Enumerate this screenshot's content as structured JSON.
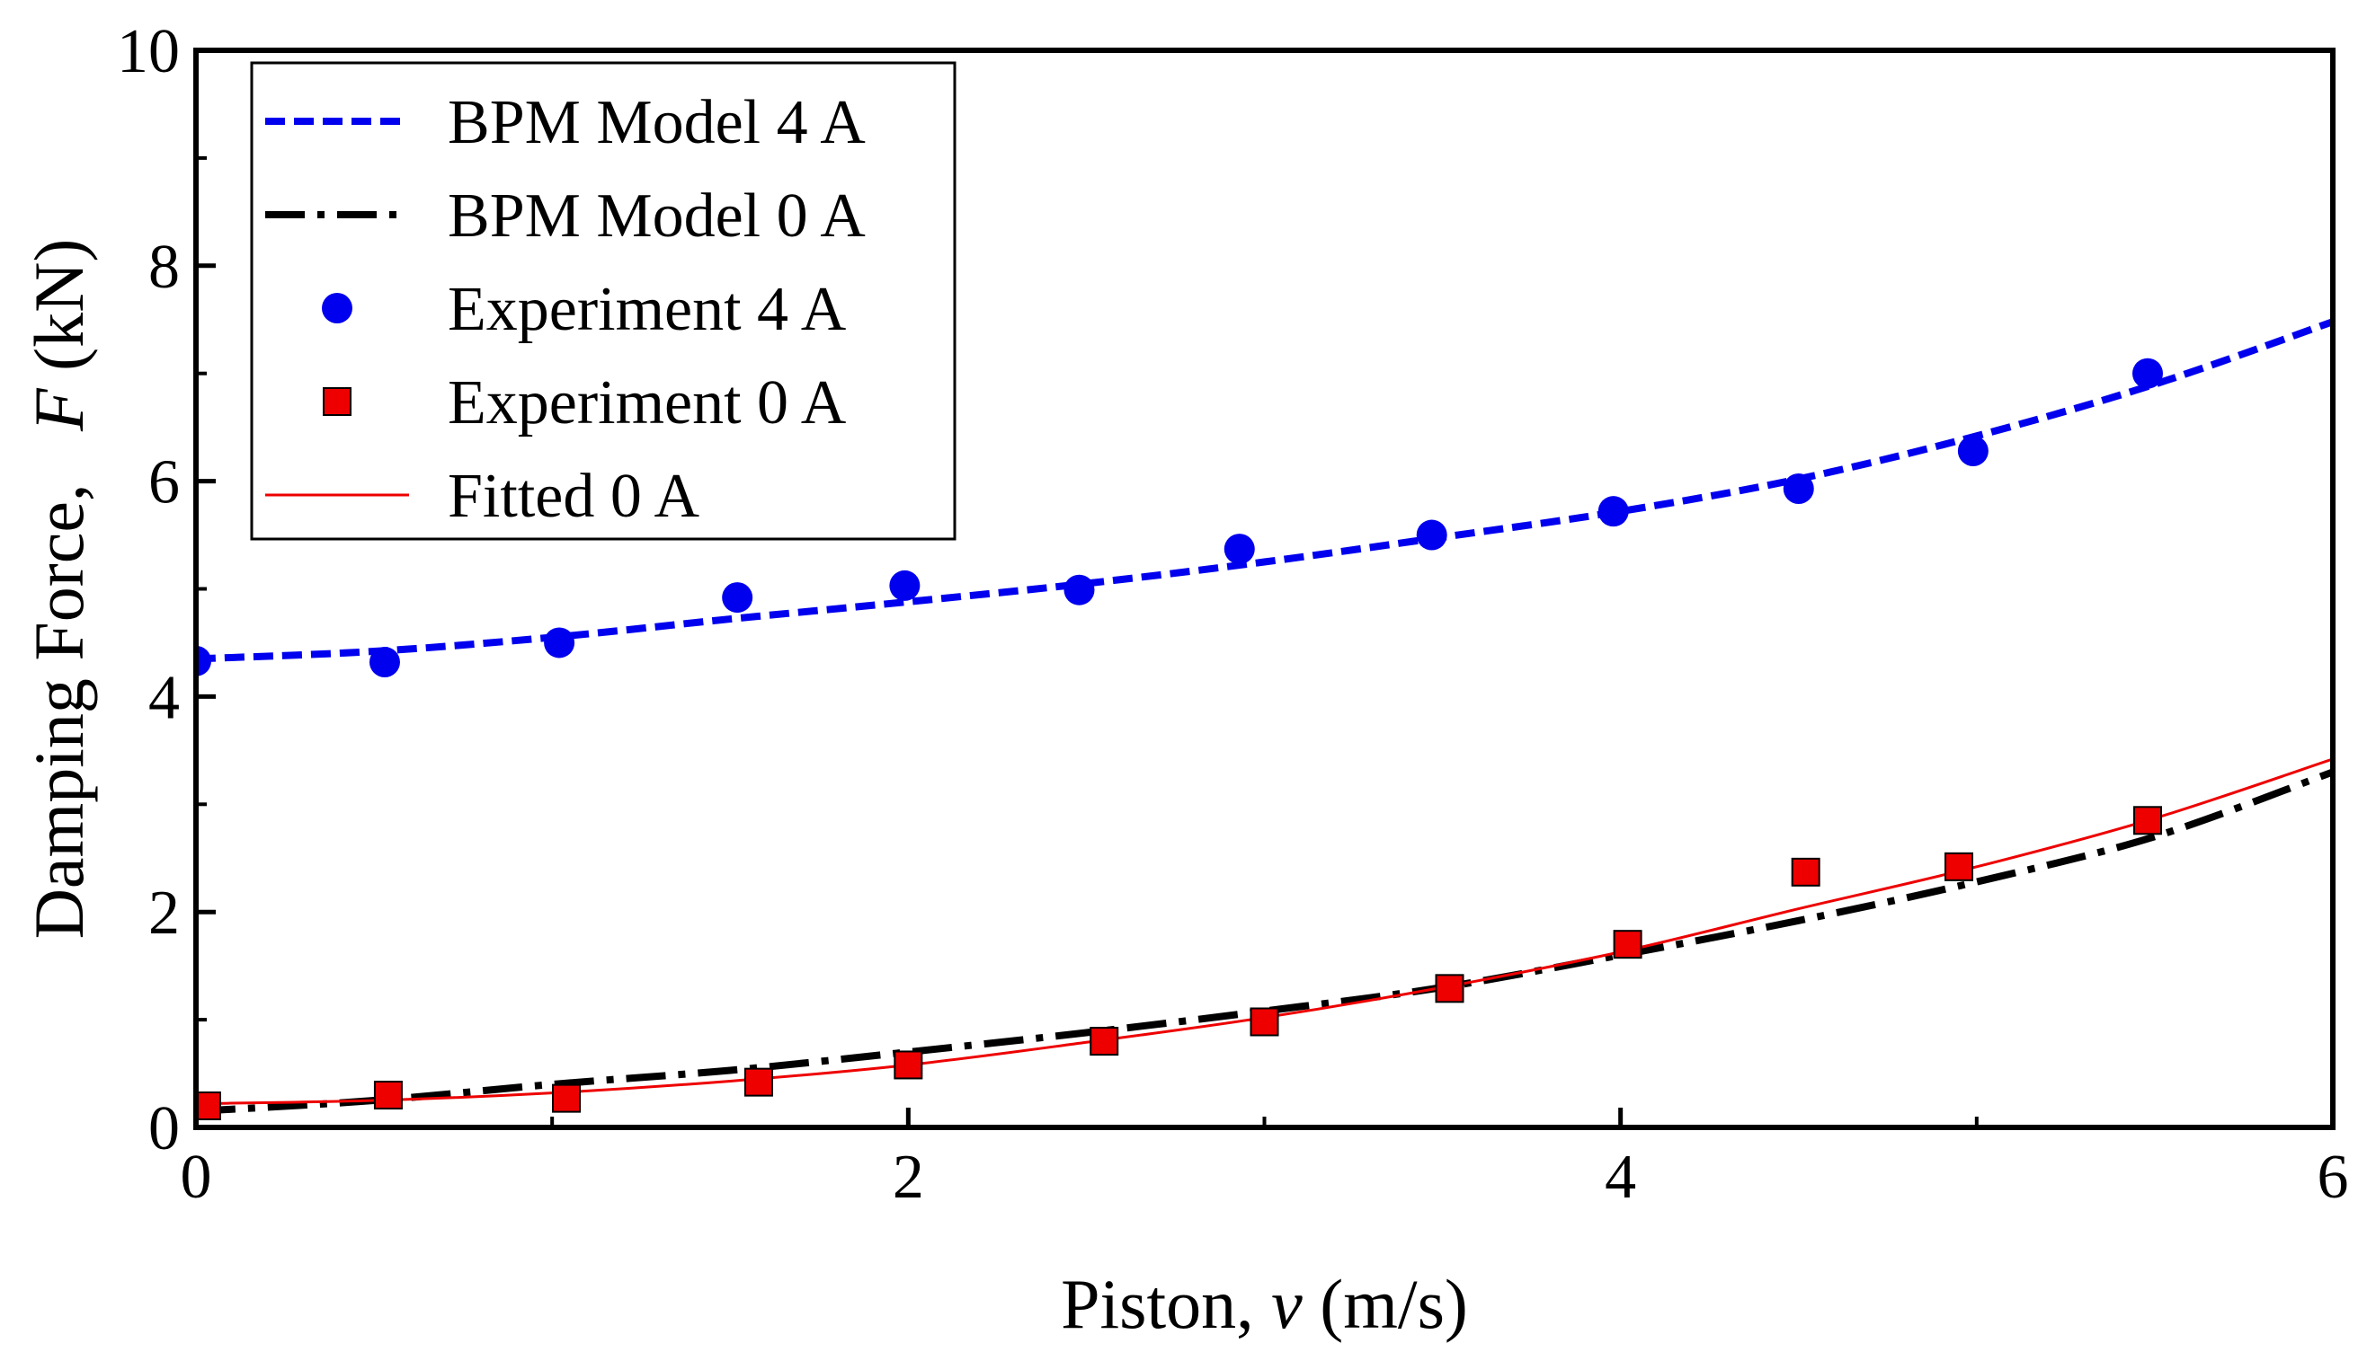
{
  "chart_data": {
    "type": "scatter",
    "xlabel": {
      "pre": "Piston, ",
      "var": "v",
      "post": " (m/s)"
    },
    "ylabel": {
      "pre": "Damping Force,   ",
      "var": "F",
      "post": " (kN)"
    },
    "xlim": [
      0,
      6
    ],
    "ylim": [
      0,
      10
    ],
    "xticks": [
      "0",
      "2",
      "4",
      "6"
    ],
    "yticks": [
      "0",
      "2",
      "4",
      "6",
      "8",
      "10"
    ],
    "grid": false,
    "legend_position": "top-left",
    "series": [
      {
        "name": "BPM Model 4 A",
        "kind": "line",
        "style": "dashed",
        "color": "#0000ee",
        "x": [
          0,
          0.5,
          1,
          1.5,
          2,
          2.5,
          3,
          3.5,
          4,
          4.5,
          5,
          5.5,
          6
        ],
        "y": [
          4.35,
          4.42,
          4.55,
          4.72,
          4.88,
          5.05,
          5.25,
          5.48,
          5.72,
          6.02,
          6.42,
          6.9,
          7.48
        ]
      },
      {
        "name": "BPM Model 0 A",
        "kind": "line",
        "style": "dashdot",
        "color": "#000000",
        "x": [
          0,
          0.5,
          1,
          1.5,
          2,
          2.5,
          3,
          3.5,
          4,
          4.5,
          5,
          5.5,
          6
        ],
        "y": [
          0.15,
          0.25,
          0.4,
          0.53,
          0.7,
          0.88,
          1.08,
          1.3,
          1.6,
          1.92,
          2.28,
          2.7,
          3.3
        ]
      },
      {
        "name": "Experiment 4 A",
        "kind": "points",
        "marker": "circle",
        "color": "#0000ee",
        "x": [
          0,
          0.53,
          1.02,
          1.52,
          1.99,
          2.48,
          2.93,
          3.47,
          3.98,
          4.5,
          4.99,
          5.48
        ],
        "y": [
          4.33,
          4.32,
          4.5,
          4.92,
          5.03,
          4.99,
          5.37,
          5.5,
          5.72,
          5.93,
          6.28,
          7.0
        ]
      },
      {
        "name": "Experiment 0 A",
        "kind": "points",
        "marker": "square",
        "color": "#ee0000",
        "x": [
          0.03,
          0.54,
          1.04,
          1.58,
          2.0,
          2.55,
          3.0,
          3.52,
          4.02,
          4.52,
          4.95,
          5.48
        ],
        "y": [
          0.2,
          0.3,
          0.27,
          0.42,
          0.58,
          0.8,
          0.98,
          1.29,
          1.7,
          2.37,
          2.42,
          2.85
        ]
      },
      {
        "name": "Fitted 0 A",
        "kind": "line",
        "style": "solid",
        "color": "#ee0000",
        "x": [
          0,
          0.5,
          1,
          1.5,
          2,
          2.5,
          3,
          3.5,
          4,
          4.5,
          5,
          5.5,
          6
        ],
        "y": [
          0.22,
          0.25,
          0.32,
          0.43,
          0.58,
          0.79,
          1.02,
          1.3,
          1.63,
          2.03,
          2.42,
          2.87,
          3.42
        ]
      }
    ]
  }
}
